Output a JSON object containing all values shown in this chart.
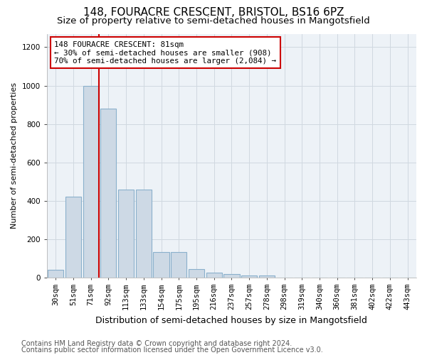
{
  "title_line1": "148, FOURACRE CRESCENT, BRISTOL, BS16 6PZ",
  "title_line2": "Size of property relative to semi-detached houses in Mangotsfield",
  "xlabel": "Distribution of semi-detached houses by size in Mangotsfield",
  "ylabel": "Number of semi-detached properties",
  "footer_line1": "Contains HM Land Registry data © Crown copyright and database right 2024.",
  "footer_line2": "Contains public sector information licensed under the Open Government Licence v3.0.",
  "categories": [
    "30sqm",
    "51sqm",
    "71sqm",
    "92sqm",
    "113sqm",
    "133sqm",
    "154sqm",
    "175sqm",
    "195sqm",
    "216sqm",
    "237sqm",
    "257sqm",
    "278sqm",
    "298sqm",
    "319sqm",
    "340sqm",
    "360sqm",
    "381sqm",
    "402sqm",
    "422sqm",
    "443sqm"
  ],
  "values": [
    40,
    420,
    1000,
    880,
    460,
    460,
    135,
    135,
    45,
    25,
    20,
    10,
    10,
    0,
    0,
    0,
    0,
    0,
    0,
    0,
    0
  ],
  "bar_color": "#cdd9e5",
  "bar_edge_color": "#8ab0cc",
  "red_line_color": "#cc0000",
  "annotation_text": "148 FOURACRE CRESCENT: 81sqm\n← 30% of semi-detached houses are smaller (908)\n70% of semi-detached houses are larger (2,084) →",
  "annotation_box_edge": "#cc0000",
  "highlight_bar_index": 2,
  "ylim": [
    0,
    1270
  ],
  "yticks": [
    0,
    200,
    400,
    600,
    800,
    1000,
    1200
  ],
  "grid_color": "#d0d8e0",
  "bg_color": "#edf2f7",
  "title1_fontsize": 11,
  "title2_fontsize": 9.5,
  "ylabel_fontsize": 8,
  "xlabel_fontsize": 9,
  "tick_fontsize": 7.5,
  "footer_fontsize": 7
}
